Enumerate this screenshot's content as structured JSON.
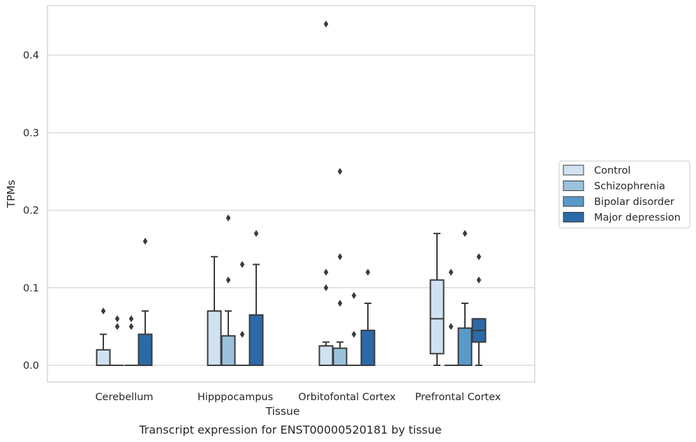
{
  "caption": "Transcript expression for ENST00000520181 by tissue",
  "chart_data": {
    "type": "box",
    "xlabel": "Tissue",
    "ylabel": "TPMs",
    "ylim": [
      -0.022,
      0.464
    ],
    "yticks": [
      0.0,
      0.1,
      0.2,
      0.3,
      0.4
    ],
    "ytick_labels": [
      "0.0",
      "0.1",
      "0.2",
      "0.3",
      "0.4"
    ],
    "grid": "horizontal",
    "legend_position": "right",
    "categories": [
      "Cerebellum",
      "Hipppocampus",
      "Orbitofontal Cortex",
      "Prefrontal Cortex"
    ],
    "series": [
      {
        "name": "Control",
        "color": "#d0e1f2",
        "boxes": [
          {
            "q1": 0.0,
            "median": 0.0,
            "q3": 0.02,
            "whisker_low": 0.0,
            "whisker_high": 0.04,
            "outliers": [
              0.07
            ]
          },
          {
            "q1": 0.0,
            "median": 0.0,
            "q3": 0.07,
            "whisker_low": 0.0,
            "whisker_high": 0.14,
            "outliers": []
          },
          {
            "q1": 0.0,
            "median": 0.0,
            "q3": 0.025,
            "whisker_low": 0.0,
            "whisker_high": 0.03,
            "outliers": [
              0.1,
              0.12,
              0.44
            ]
          },
          {
            "q1": 0.015,
            "median": 0.06,
            "q3": 0.11,
            "whisker_low": 0.0,
            "whisker_high": 0.17,
            "outliers": []
          }
        ]
      },
      {
        "name": "Schizophrenia",
        "color": "#9ac2dc",
        "boxes": [
          {
            "q1": 0.0,
            "median": 0.0,
            "q3": 0.0,
            "whisker_low": 0.0,
            "whisker_high": 0.0,
            "outliers": [
              0.05,
              0.06
            ]
          },
          {
            "q1": 0.0,
            "median": 0.0,
            "q3": 0.038,
            "whisker_low": 0.0,
            "whisker_high": 0.07,
            "outliers": [
              0.11,
              0.19
            ]
          },
          {
            "q1": 0.0,
            "median": 0.0,
            "q3": 0.022,
            "whisker_low": 0.0,
            "whisker_high": 0.03,
            "outliers": [
              0.08,
              0.14,
              0.25
            ]
          },
          {
            "q1": 0.0,
            "median": 0.0,
            "q3": 0.0,
            "whisker_low": 0.0,
            "whisker_high": 0.0,
            "outliers": [
              0.05,
              0.12
            ]
          }
        ]
      },
      {
        "name": "Bipolar disorder",
        "color": "#5a9ac8",
        "boxes": [
          {
            "q1": 0.0,
            "median": 0.0,
            "q3": 0.0,
            "whisker_low": 0.0,
            "whisker_high": 0.0,
            "outliers": [
              0.05,
              0.06
            ]
          },
          {
            "q1": 0.0,
            "median": 0.0,
            "q3": 0.0,
            "whisker_low": 0.0,
            "whisker_high": 0.0,
            "outliers": [
              0.04,
              0.13
            ]
          },
          {
            "q1": 0.0,
            "median": 0.0,
            "q3": 0.0,
            "whisker_low": 0.0,
            "whisker_high": 0.0,
            "outliers": [
              0.04,
              0.09
            ]
          },
          {
            "q1": 0.0,
            "median": 0.0,
            "q3": 0.048,
            "whisker_low": 0.0,
            "whisker_high": 0.08,
            "outliers": [
              0.17
            ]
          }
        ]
      },
      {
        "name": "Major depression",
        "color": "#2b69a8",
        "boxes": [
          {
            "q1": 0.0,
            "median": 0.0,
            "q3": 0.04,
            "whisker_low": 0.0,
            "whisker_high": 0.07,
            "outliers": [
              0.16
            ]
          },
          {
            "q1": 0.0,
            "median": 0.0,
            "q3": 0.065,
            "whisker_low": 0.0,
            "whisker_high": 0.13,
            "outliers": [
              0.17
            ]
          },
          {
            "q1": 0.0,
            "median": 0.0,
            "q3": 0.045,
            "whisker_low": 0.0,
            "whisker_high": 0.08,
            "outliers": [
              0.12
            ]
          },
          {
            "q1": 0.03,
            "median": 0.045,
            "q3": 0.06,
            "whisker_low": 0.0,
            "whisker_high": 0.06,
            "outliers": [
              0.11,
              0.14
            ]
          }
        ]
      }
    ]
  }
}
